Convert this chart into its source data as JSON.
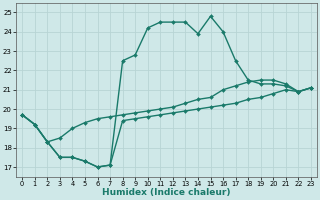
{
  "xlabel": "Humidex (Indice chaleur)",
  "xlim": [
    -0.5,
    23.5
  ],
  "ylim": [
    16.5,
    25.5
  ],
  "yticks": [
    17,
    18,
    19,
    20,
    21,
    22,
    23,
    24,
    25
  ],
  "xticks": [
    0,
    1,
    2,
    3,
    4,
    5,
    6,
    7,
    8,
    9,
    10,
    11,
    12,
    13,
    14,
    15,
    16,
    17,
    18,
    19,
    20,
    21,
    22,
    23
  ],
  "bg_color": "#cfe8e8",
  "grid_color": "#b8d4d4",
  "line_color": "#1a7a6a",
  "line1": [
    19.7,
    19.2,
    18.3,
    17.5,
    17.5,
    17.3,
    17.0,
    17.1,
    19.4,
    19.5,
    19.6,
    19.7,
    19.8,
    19.9,
    20.0,
    20.1,
    20.2,
    20.3,
    20.5,
    20.6,
    20.8,
    21.0,
    20.9,
    21.1
  ],
  "line2": [
    19.7,
    19.2,
    18.3,
    18.5,
    19.0,
    19.3,
    19.5,
    19.6,
    19.7,
    19.8,
    19.9,
    20.0,
    20.1,
    20.3,
    20.5,
    20.6,
    21.0,
    21.2,
    21.4,
    21.5,
    21.5,
    21.3,
    20.9,
    21.1
  ],
  "line3": [
    19.7,
    19.2,
    18.3,
    17.5,
    17.5,
    17.3,
    17.0,
    17.1,
    22.5,
    22.8,
    24.2,
    24.5,
    24.5,
    24.5,
    23.9,
    24.8,
    24.0,
    22.5,
    21.5,
    21.3,
    21.3,
    21.2,
    20.9,
    21.1
  ],
  "line4": [
    null,
    null,
    null,
    null,
    null,
    null,
    null,
    null,
    null,
    null,
    null,
    null,
    null,
    null,
    null,
    null,
    null,
    null,
    null,
    null,
    null,
    null,
    null,
    null
  ]
}
